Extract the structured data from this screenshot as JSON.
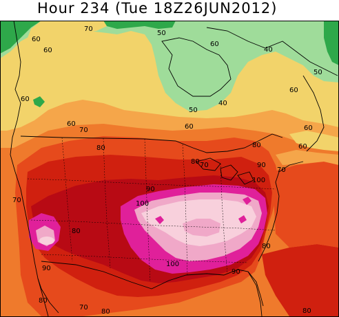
{
  "header": {
    "title": "Hour 234 (Tue 18Z26JUN2012)"
  },
  "map": {
    "contour_labels": [
      {
        "id": "l1",
        "text": "70"
      },
      {
        "id": "l2",
        "text": "60"
      },
      {
        "id": "l3",
        "text": "60"
      },
      {
        "id": "l4",
        "text": "50"
      },
      {
        "id": "l5",
        "text": "60"
      },
      {
        "id": "l6",
        "text": "40"
      },
      {
        "id": "l7",
        "text": "50"
      },
      {
        "id": "l8",
        "text": "60"
      },
      {
        "id": "l9",
        "text": "60"
      },
      {
        "id": "l10",
        "text": "50"
      },
      {
        "id": "l11",
        "text": "40"
      },
      {
        "id": "l12",
        "text": "60"
      },
      {
        "id": "l13",
        "text": "60"
      },
      {
        "id": "l14",
        "text": "70"
      },
      {
        "id": "l15",
        "text": "80"
      },
      {
        "id": "l16",
        "text": "80"
      },
      {
        "id": "l17",
        "text": "60"
      },
      {
        "id": "l18",
        "text": "60"
      },
      {
        "id": "l19",
        "text": "80"
      },
      {
        "id": "l20",
        "text": "70"
      },
      {
        "id": "l21",
        "text": "90"
      },
      {
        "id": "l22",
        "text": "70"
      },
      {
        "id": "l23",
        "text": "100"
      },
      {
        "id": "l24",
        "text": "90"
      },
      {
        "id": "l25",
        "text": "100"
      },
      {
        "id": "l26",
        "text": "70"
      },
      {
        "id": "l27",
        "text": "80"
      },
      {
        "id": "l28",
        "text": "90"
      },
      {
        "id": "l29",
        "text": "100"
      },
      {
        "id": "l30",
        "text": "80"
      },
      {
        "id": "l31",
        "text": "90"
      },
      {
        "id": "l32",
        "text": "80"
      },
      {
        "id": "l33",
        "text": "70"
      },
      {
        "id": "l34",
        "text": "80"
      },
      {
        "id": "l35",
        "text": "80"
      }
    ],
    "colors": {
      "green_dark": "#2ea84a",
      "green_light": "#9fdc9a",
      "yellow": "#f2d36a",
      "orange_light": "#f5a64a",
      "orange": "#ef7a2c",
      "red_orange": "#e64a1c",
      "red": "#d0200f",
      "dark_red": "#b80a14",
      "magenta": "#e0209a",
      "pink": "#f0a8c8",
      "light_pink": "#f8d0dc",
      "borders": "#000000"
    }
  }
}
